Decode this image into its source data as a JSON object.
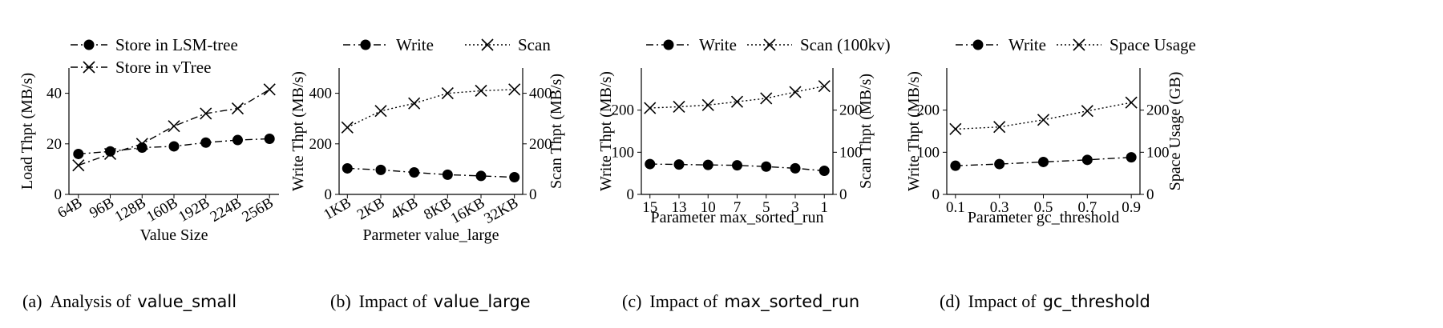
{
  "chart_data": [
    {
      "type": "line",
      "caption_prefix": "(a)",
      "caption_text": "Analysis of",
      "caption_code": "value_small",
      "xlabel": "Value Size",
      "ylabel": "Load Thpt (MB/s)",
      "ylim": [
        0,
        50
      ],
      "yticks": [
        0,
        20,
        40
      ],
      "categories": [
        "64B",
        "96B",
        "128B",
        "160B",
        "192B",
        "224B",
        "256B"
      ],
      "series": [
        {
          "name": "Store in LSM-tree",
          "marker": "dot",
          "line": "dashdot",
          "axis": "left",
          "values": [
            16,
            17,
            18.5,
            19,
            20.5,
            21.5,
            22
          ]
        },
        {
          "name": "Store in vTree",
          "marker": "x",
          "line": "dashdot",
          "axis": "left",
          "values": [
            11.5,
            16,
            20,
            27,
            32,
            34,
            41.5
          ]
        }
      ],
      "legend": "top"
    },
    {
      "type": "line",
      "caption_prefix": "(b)",
      "caption_text": "Impact of",
      "caption_code": "value_large",
      "xlabel": "Parmeter value_large",
      "ylabel": "Write Thpt (MB/s)",
      "ylabel_right": "Scan Thpt (MB/s)",
      "ylim": [
        0,
        500
      ],
      "yticks": [
        0,
        200,
        400
      ],
      "ylim_right": [
        0,
        500
      ],
      "yticks_right": [
        0,
        200,
        400
      ],
      "categories": [
        "1KB",
        "2KB",
        "4KB",
        "8KB",
        "16KB",
        "32KB"
      ],
      "series": [
        {
          "name": "Write",
          "marker": "dot",
          "line": "dashdot",
          "axis": "left",
          "values": [
            103,
            97,
            87,
            78,
            73,
            68
          ]
        },
        {
          "name": "Scan",
          "marker": "x",
          "line": "dotted",
          "axis": "right",
          "values": [
            265,
            330,
            360,
            400,
            410,
            415
          ]
        }
      ],
      "legend": "top"
    },
    {
      "type": "line",
      "caption_prefix": "(c)",
      "caption_text": "Impact of",
      "caption_code": "max_sorted_run",
      "xlabel": "Parameter max_sorted_run",
      "ylabel": "Write Thpt (MB/s)",
      "ylabel_right": "Scan Thpt (MB/s)",
      "ylim": [
        0,
        300
      ],
      "yticks": [
        0,
        100,
        200
      ],
      "ylim_right": [
        0,
        300
      ],
      "yticks_right": [
        0,
        100,
        200
      ],
      "categories": [
        "15",
        "13",
        "10",
        "7",
        "5",
        "3",
        "1"
      ],
      "series": [
        {
          "name": "Write",
          "marker": "dot",
          "line": "dashdot",
          "axis": "left",
          "values": [
            72,
            71,
            70,
            69,
            66,
            62,
            56
          ]
        },
        {
          "name": "Scan (100kv)",
          "marker": "x",
          "line": "dotted",
          "axis": "right",
          "values": [
            205,
            208,
            212,
            220,
            228,
            243,
            257
          ]
        }
      ],
      "legend": "top"
    },
    {
      "type": "line",
      "caption_prefix": "(d)",
      "caption_text": "Impact of",
      "caption_code": "gc_threshold",
      "xlabel": "Parameter gc_threshold",
      "ylabel": "Write Thpt (MB/s)",
      "ylabel_right": "Space Usage (GB)",
      "ylim": [
        0,
        300
      ],
      "yticks": [
        0,
        100,
        200
      ],
      "ylim_right": [
        0,
        300
      ],
      "yticks_right": [
        0,
        100,
        200
      ],
      "categories": [
        "0.1",
        "0.3",
        "0.5",
        "0.7",
        "0.9"
      ],
      "series": [
        {
          "name": "Write",
          "marker": "dot",
          "line": "dashdot",
          "axis": "left",
          "values": [
            68,
            72,
            77,
            82,
            88
          ]
        },
        {
          "name": "Space Usage",
          "marker": "x",
          "line": "dotted",
          "axis": "right",
          "values": [
            155,
            160,
            177,
            198,
            218
          ]
        }
      ],
      "legend": "top"
    }
  ]
}
